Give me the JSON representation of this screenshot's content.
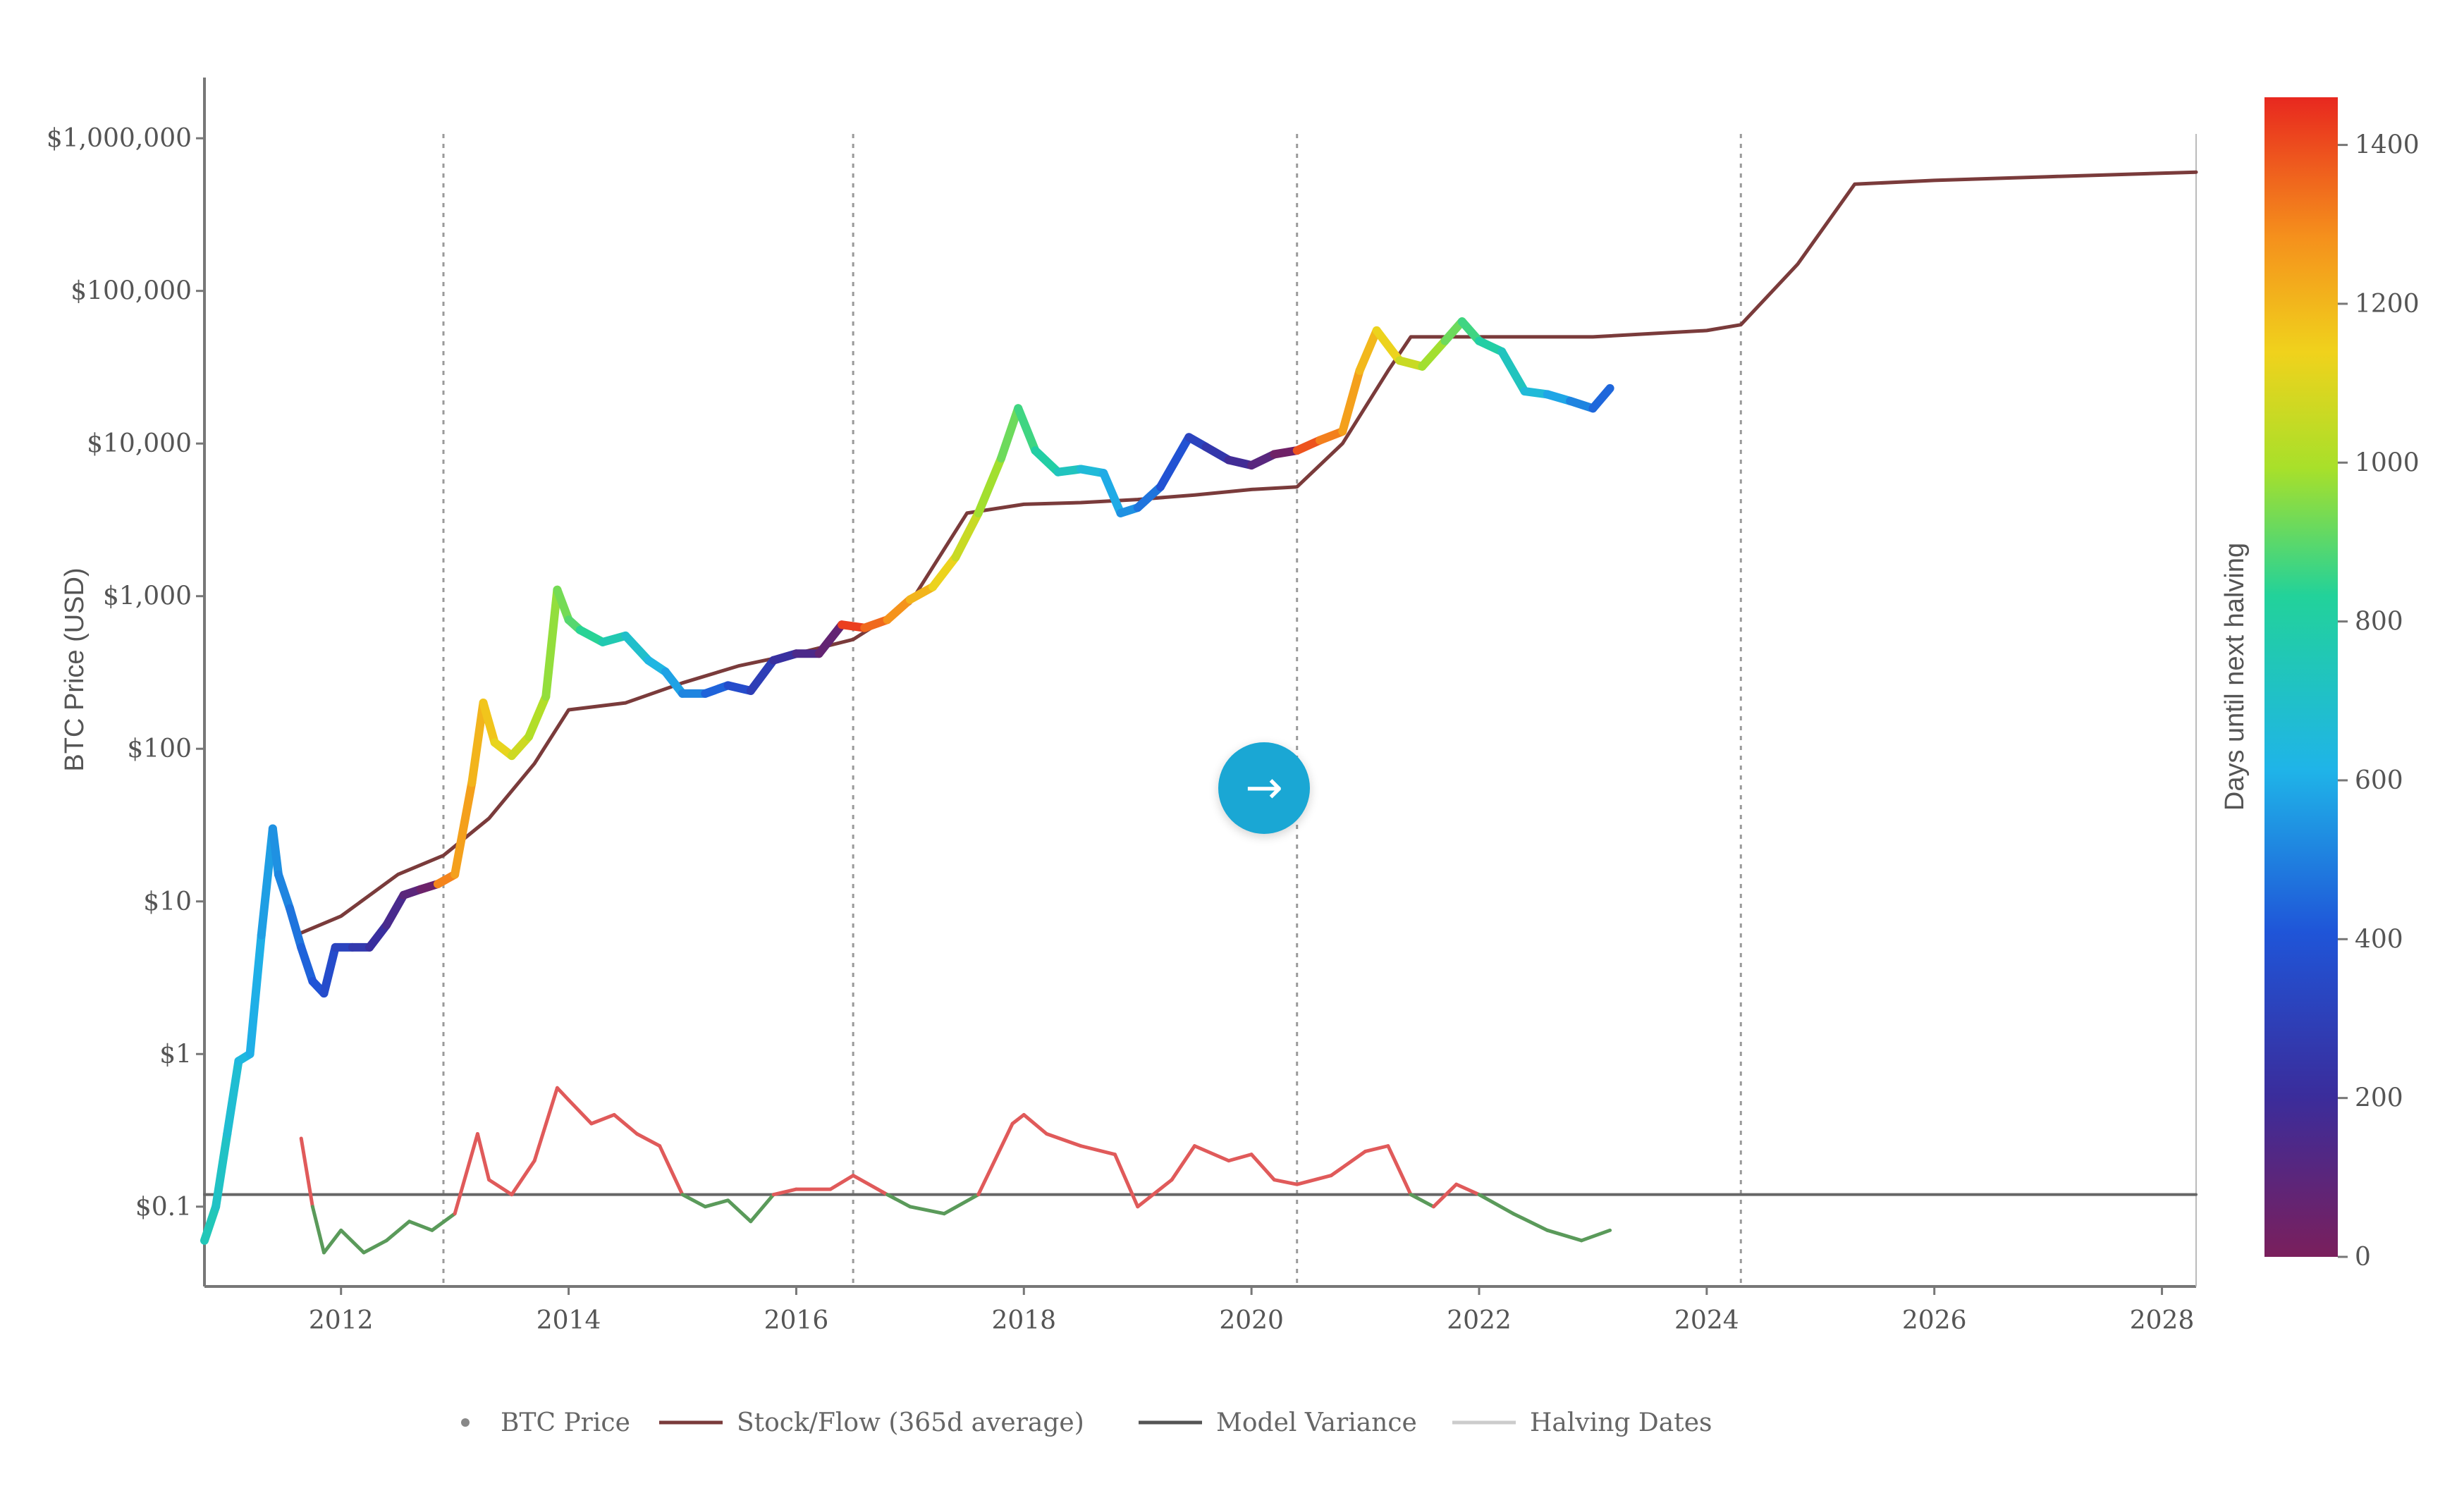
{
  "chart_data": {
    "type": "line",
    "xlabel": "",
    "ylabel": "BTC Price (USD)",
    "xlim": [
      2010.8,
      2028.3
    ],
    "ylim": [
      0.03,
      2500000
    ],
    "y_scale": "log",
    "x_ticks": [
      {
        "value": 2012,
        "label": "2012"
      },
      {
        "value": 2014,
        "label": "2014"
      },
      {
        "value": 2016,
        "label": "2016"
      },
      {
        "value": 2018,
        "label": "2018"
      },
      {
        "value": 2020,
        "label": "2020"
      },
      {
        "value": 2022,
        "label": "2022"
      },
      {
        "value": 2024,
        "label": "2024"
      },
      {
        "value": 2026,
        "label": "2026"
      },
      {
        "value": 2028,
        "label": "2028"
      }
    ],
    "y_ticks": [
      {
        "value": 1000000,
        "label": "$1,000,000"
      },
      {
        "value": 100000,
        "label": "$100,000"
      },
      {
        "value": 10000,
        "label": "$10,000"
      },
      {
        "value": 1000,
        "label": "$1,000"
      },
      {
        "value": 100,
        "label": "$100"
      },
      {
        "value": 10,
        "label": "$10"
      },
      {
        "value": 1,
        "label": "$1"
      },
      {
        "value": 0.1,
        "label": "$0.1"
      }
    ],
    "halving_dates": [
      2012.9,
      2016.5,
      2020.4,
      2024.3
    ],
    "colorbar": {
      "label": "Days until next halving",
      "min": 0,
      "max": 1460,
      "ticks": [
        0,
        200,
        400,
        600,
        800,
        1000,
        1200,
        1400
      ]
    },
    "legend": [
      {
        "name": "BTC Price",
        "color": "#888888"
      },
      {
        "name": "Stock/Flow (365d average)",
        "color": "#7a3b3b"
      },
      {
        "name": "Model Variance",
        "color": "#555555"
      },
      {
        "name": "Halving Dates",
        "color": "#cccccc"
      }
    ],
    "series": [
      {
        "name": "BTC Price",
        "x": [
          2010.8,
          2010.9,
          2011.0,
          2011.1,
          2011.2,
          2011.3,
          2011.4,
          2011.45,
          2011.55,
          2011.65,
          2011.75,
          2011.85,
          2011.95,
          2012.1,
          2012.25,
          2012.4,
          2012.55,
          2012.7,
          2012.85,
          2013.0,
          2013.15,
          2013.25,
          2013.35,
          2013.5,
          2013.65,
          2013.8,
          2013.9,
          2014.0,
          2014.1,
          2014.3,
          2014.5,
          2014.7,
          2014.85,
          2015.0,
          2015.2,
          2015.4,
          2015.6,
          2015.8,
          2016.0,
          2016.2,
          2016.4,
          2016.6,
          2016.8,
          2017.0,
          2017.2,
          2017.4,
          2017.6,
          2017.8,
          2017.95,
          2018.1,
          2018.3,
          2018.5,
          2018.7,
          2018.85,
          2019.0,
          2019.2,
          2019.45,
          2019.6,
          2019.8,
          2020.0,
          2020.2,
          2020.4,
          2020.6,
          2020.8,
          2020.95,
          2021.1,
          2021.3,
          2021.5,
          2021.7,
          2021.85,
          2022.0,
          2022.2,
          2022.4,
          2022.6,
          2022.8,
          2023.0,
          2023.15
        ],
        "y": [
          0.06,
          0.1,
          0.3,
          0.9,
          1.0,
          6,
          30,
          15,
          9,
          5,
          3,
          2.5,
          5,
          5,
          5,
          7,
          11,
          12,
          13,
          15,
          60,
          200,
          110,
          90,
          120,
          220,
          1100,
          700,
          600,
          500,
          550,
          380,
          320,
          230,
          230,
          260,
          240,
          380,
          420,
          420,
          650,
          620,
          700,
          950,
          1150,
          1800,
          3500,
          8000,
          17000,
          9000,
          6500,
          6800,
          6400,
          3500,
          3800,
          5200,
          11000,
          9500,
          7800,
          7200,
          8500,
          9000,
          10500,
          12000,
          30000,
          55000,
          35000,
          32000,
          47000,
          63000,
          47000,
          40000,
          22000,
          21000,
          19000,
          17000,
          23000
        ]
      },
      {
        "name": "Stock/Flow (365d average)",
        "x": [
          2011.6,
          2012.0,
          2012.5,
          2012.9,
          2013.3,
          2013.7,
          2014.0,
          2014.5,
          2015.0,
          2015.5,
          2016.0,
          2016.5,
          2017.0,
          2017.5,
          2018.0,
          2018.5,
          2019.0,
          2019.5,
          2020.0,
          2020.4,
          2020.8,
          2021.2,
          2021.4,
          2022.0,
          2023.0,
          2024.0,
          2024.3,
          2024.8,
          2025.3,
          2026.0,
          2027.0,
          2028.3
        ],
        "y": [
          6,
          8,
          15,
          20,
          35,
          80,
          180,
          200,
          270,
          350,
          420,
          520,
          900,
          3500,
          4000,
          4100,
          4300,
          4600,
          5000,
          5200,
          10000,
          30000,
          50000,
          50000,
          50000,
          55000,
          60000,
          150000,
          500000,
          530000,
          560000,
          600000
        ]
      },
      {
        "name": "Model Variance",
        "x": [
          2011.65,
          2011.75,
          2011.85,
          2012.0,
          2012.2,
          2012.4,
          2012.6,
          2012.8,
          2013.0,
          2013.2,
          2013.3,
          2013.5,
          2013.7,
          2013.9,
          2014.0,
          2014.2,
          2014.4,
          2014.6,
          2014.8,
          2015.0,
          2015.2,
          2015.4,
          2015.6,
          2015.8,
          2016.0,
          2016.3,
          2016.5,
          2016.8,
          2017.0,
          2017.3,
          2017.6,
          2017.9,
          2018.0,
          2018.2,
          2018.5,
          2018.8,
          2019.0,
          2019.3,
          2019.5,
          2019.8,
          2020.0,
          2020.2,
          2020.4,
          2020.7,
          2021.0,
          2021.2,
          2021.4,
          2021.6,
          2021.8,
          2022.0,
          2022.3,
          2022.6,
          2022.9,
          2023.15
        ],
        "y": [
          0.28,
          0.1,
          0.05,
          0.07,
          0.05,
          0.06,
          0.08,
          0.07,
          0.09,
          0.3,
          0.15,
          0.12,
          0.2,
          0.6,
          0.5,
          0.35,
          0.4,
          0.3,
          0.25,
          0.12,
          0.1,
          0.11,
          0.08,
          0.12,
          0.13,
          0.13,
          0.16,
          0.12,
          0.1,
          0.09,
          0.12,
          0.35,
          0.4,
          0.3,
          0.25,
          0.22,
          0.1,
          0.15,
          0.25,
          0.2,
          0.22,
          0.15,
          0.14,
          0.16,
          0.23,
          0.25,
          0.12,
          0.1,
          0.14,
          0.12,
          0.09,
          0.07,
          0.06,
          0.07
        ]
      },
      {
        "name": "Model Variance Baseline",
        "x": [
          2010.8,
          2028.3
        ],
        "y": [
          0.12,
          0.12
        ]
      }
    ]
  }
}
